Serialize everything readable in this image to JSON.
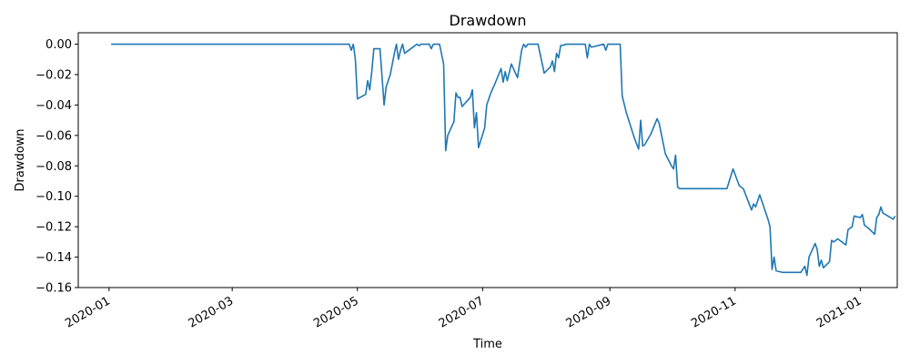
{
  "chart_data": {
    "type": "line",
    "title": "Drawdown",
    "xlabel": "Time",
    "ylabel": "Drawdown",
    "grid": false,
    "legend": "none",
    "x_range": [
      "2019-12-17",
      "2021-01-19"
    ],
    "ylim": [
      -0.16,
      0.0075
    ],
    "x_ticks": [
      {
        "date": "2020-01-01",
        "label": "2020-01"
      },
      {
        "date": "2020-03-01",
        "label": "2020-03"
      },
      {
        "date": "2020-05-01",
        "label": "2020-05"
      },
      {
        "date": "2020-07-01",
        "label": "2020-07"
      },
      {
        "date": "2020-09-01",
        "label": "2020-09"
      },
      {
        "date": "2020-11-01",
        "label": "2020-11"
      },
      {
        "date": "2021-01-01",
        "label": "2021-01"
      }
    ],
    "y_ticks": [
      {
        "value": 0.0,
        "label": "0.00"
      },
      {
        "value": -0.02,
        "label": "−0.02"
      },
      {
        "value": -0.04,
        "label": "−0.04"
      },
      {
        "value": -0.06,
        "label": "−0.06"
      },
      {
        "value": -0.08,
        "label": "−0.08"
      },
      {
        "value": -0.1,
        "label": "−0.10"
      },
      {
        "value": -0.12,
        "label": "−0.12"
      },
      {
        "value": -0.14,
        "label": "−0.14"
      },
      {
        "value": -0.16,
        "label": "−0.16"
      }
    ],
    "series": [
      {
        "color": "#1f77b4",
        "points": [
          [
            "2020-01-02",
            0.0
          ],
          [
            "2020-04-27",
            0.0
          ],
          [
            "2020-04-28",
            -0.004
          ],
          [
            "2020-04-29",
            0.0
          ],
          [
            "2020-04-30",
            -0.01
          ],
          [
            "2020-05-01",
            -0.036
          ],
          [
            "2020-05-05",
            -0.033
          ],
          [
            "2020-05-06",
            -0.024
          ],
          [
            "2020-05-07",
            -0.03
          ],
          [
            "2020-05-08",
            -0.018
          ],
          [
            "2020-05-09",
            -0.003
          ],
          [
            "2020-05-12",
            -0.003
          ],
          [
            "2020-05-14",
            -0.04
          ],
          [
            "2020-05-15",
            -0.028
          ],
          [
            "2020-05-17",
            -0.02
          ],
          [
            "2020-05-19",
            -0.006
          ],
          [
            "2020-05-20",
            0.0
          ],
          [
            "2020-05-21",
            -0.01
          ],
          [
            "2020-05-22",
            -0.004
          ],
          [
            "2020-05-23",
            0.0
          ],
          [
            "2020-05-24",
            -0.006
          ],
          [
            "2020-05-27",
            -0.003
          ],
          [
            "2020-05-30",
            0.0
          ],
          [
            "2020-05-31",
            -0.001
          ],
          [
            "2020-06-01",
            0.0
          ],
          [
            "2020-06-05",
            0.0
          ],
          [
            "2020-06-06",
            -0.003
          ],
          [
            "2020-06-07",
            0.0
          ],
          [
            "2020-06-10",
            0.0
          ],
          [
            "2020-06-12",
            -0.013
          ],
          [
            "2020-06-13",
            -0.07
          ],
          [
            "2020-06-14",
            -0.06
          ],
          [
            "2020-06-17",
            -0.051
          ],
          [
            "2020-06-18",
            -0.032
          ],
          [
            "2020-06-19",
            -0.035
          ],
          [
            "2020-06-20",
            -0.035
          ],
          [
            "2020-06-21",
            -0.041
          ],
          [
            "2020-06-25",
            -0.035
          ],
          [
            "2020-06-26",
            -0.03
          ],
          [
            "2020-06-27",
            -0.055
          ],
          [
            "2020-06-28",
            -0.045
          ],
          [
            "2020-06-29",
            -0.068
          ],
          [
            "2020-07-02",
            -0.055
          ],
          [
            "2020-07-03",
            -0.04
          ],
          [
            "2020-07-05",
            -0.032
          ],
          [
            "2020-07-07",
            -0.026
          ],
          [
            "2020-07-10",
            -0.016
          ],
          [
            "2020-07-11",
            -0.025
          ],
          [
            "2020-07-12",
            -0.018
          ],
          [
            "2020-07-13",
            -0.024
          ],
          [
            "2020-07-15",
            -0.013
          ],
          [
            "2020-07-18",
            -0.022
          ],
          [
            "2020-07-20",
            -0.004
          ],
          [
            "2020-07-21",
            0.0
          ],
          [
            "2020-07-22",
            -0.002
          ],
          [
            "2020-07-23",
            0.0
          ],
          [
            "2020-07-28",
            0.0
          ],
          [
            "2020-07-31",
            -0.019
          ],
          [
            "2020-08-03",
            -0.015
          ],
          [
            "2020-08-04",
            -0.011
          ],
          [
            "2020-08-05",
            -0.018
          ],
          [
            "2020-08-06",
            -0.006
          ],
          [
            "2020-08-07",
            -0.009
          ],
          [
            "2020-08-08",
            -0.001
          ],
          [
            "2020-08-11",
            0.0
          ],
          [
            "2020-08-20",
            0.0
          ],
          [
            "2020-08-21",
            -0.009
          ],
          [
            "2020-08-22",
            0.0
          ],
          [
            "2020-08-23",
            -0.002
          ],
          [
            "2020-08-29",
            0.0
          ],
          [
            "2020-08-30",
            -0.004
          ],
          [
            "2020-08-31",
            0.0
          ],
          [
            "2020-09-04",
            0.0
          ],
          [
            "2020-09-06",
            0.0
          ],
          [
            "2020-09-07",
            -0.034
          ],
          [
            "2020-09-09",
            -0.045
          ],
          [
            "2020-09-13",
            -0.062
          ],
          [
            "2020-09-15",
            -0.069
          ],
          [
            "2020-09-16",
            -0.05
          ],
          [
            "2020-09-17",
            -0.067
          ],
          [
            "2020-09-18",
            -0.066
          ],
          [
            "2020-09-21",
            -0.059
          ],
          [
            "2020-09-24",
            -0.049
          ],
          [
            "2020-09-25",
            -0.052
          ],
          [
            "2020-09-28",
            -0.072
          ],
          [
            "2020-10-01",
            -0.08
          ],
          [
            "2020-10-02",
            -0.082
          ],
          [
            "2020-10-03",
            -0.073
          ],
          [
            "2020-10-04",
            -0.094
          ],
          [
            "2020-10-05",
            -0.095
          ],
          [
            "2020-10-28",
            -0.095
          ],
          [
            "2020-10-31",
            -0.082
          ],
          [
            "2020-11-03",
            -0.093
          ],
          [
            "2020-11-05",
            -0.095
          ],
          [
            "2020-11-07",
            -0.102
          ],
          [
            "2020-11-09",
            -0.109
          ],
          [
            "2020-11-10",
            -0.105
          ],
          [
            "2020-11-11",
            -0.107
          ],
          [
            "2020-11-13",
            -0.099
          ],
          [
            "2020-11-16",
            -0.111
          ],
          [
            "2020-11-17",
            -0.115
          ],
          [
            "2020-11-18",
            -0.12
          ],
          [
            "2020-11-19",
            -0.148
          ],
          [
            "2020-11-20",
            -0.14
          ],
          [
            "2020-11-21",
            -0.149
          ],
          [
            "2020-11-24",
            -0.15
          ],
          [
            "2020-12-03",
            -0.15
          ],
          [
            "2020-12-05",
            -0.146
          ],
          [
            "2020-12-06",
            -0.152
          ],
          [
            "2020-12-07",
            -0.14
          ],
          [
            "2020-12-10",
            -0.131
          ],
          [
            "2020-12-11",
            -0.135
          ],
          [
            "2020-12-12",
            -0.146
          ],
          [
            "2020-12-13",
            -0.142
          ],
          [
            "2020-12-14",
            -0.147
          ],
          [
            "2020-12-17",
            -0.143
          ],
          [
            "2020-12-18",
            -0.129
          ],
          [
            "2020-12-19",
            -0.13
          ],
          [
            "2020-12-21",
            -0.128
          ],
          [
            "2020-12-25",
            -0.132
          ],
          [
            "2020-12-26",
            -0.122
          ],
          [
            "2020-12-28",
            -0.12
          ],
          [
            "2020-12-29",
            -0.113
          ],
          [
            "2021-01-01",
            -0.114
          ],
          [
            "2021-01-02",
            -0.112
          ],
          [
            "2021-01-03",
            -0.119
          ],
          [
            "2021-01-05",
            -0.121
          ],
          [
            "2021-01-08",
            -0.125
          ],
          [
            "2021-01-09",
            -0.114
          ],
          [
            "2021-01-10",
            -0.112
          ],
          [
            "2021-01-11",
            -0.107
          ],
          [
            "2021-01-12",
            -0.111
          ],
          [
            "2021-01-17",
            -0.115
          ],
          [
            "2021-01-18",
            -0.113
          ]
        ]
      }
    ]
  }
}
